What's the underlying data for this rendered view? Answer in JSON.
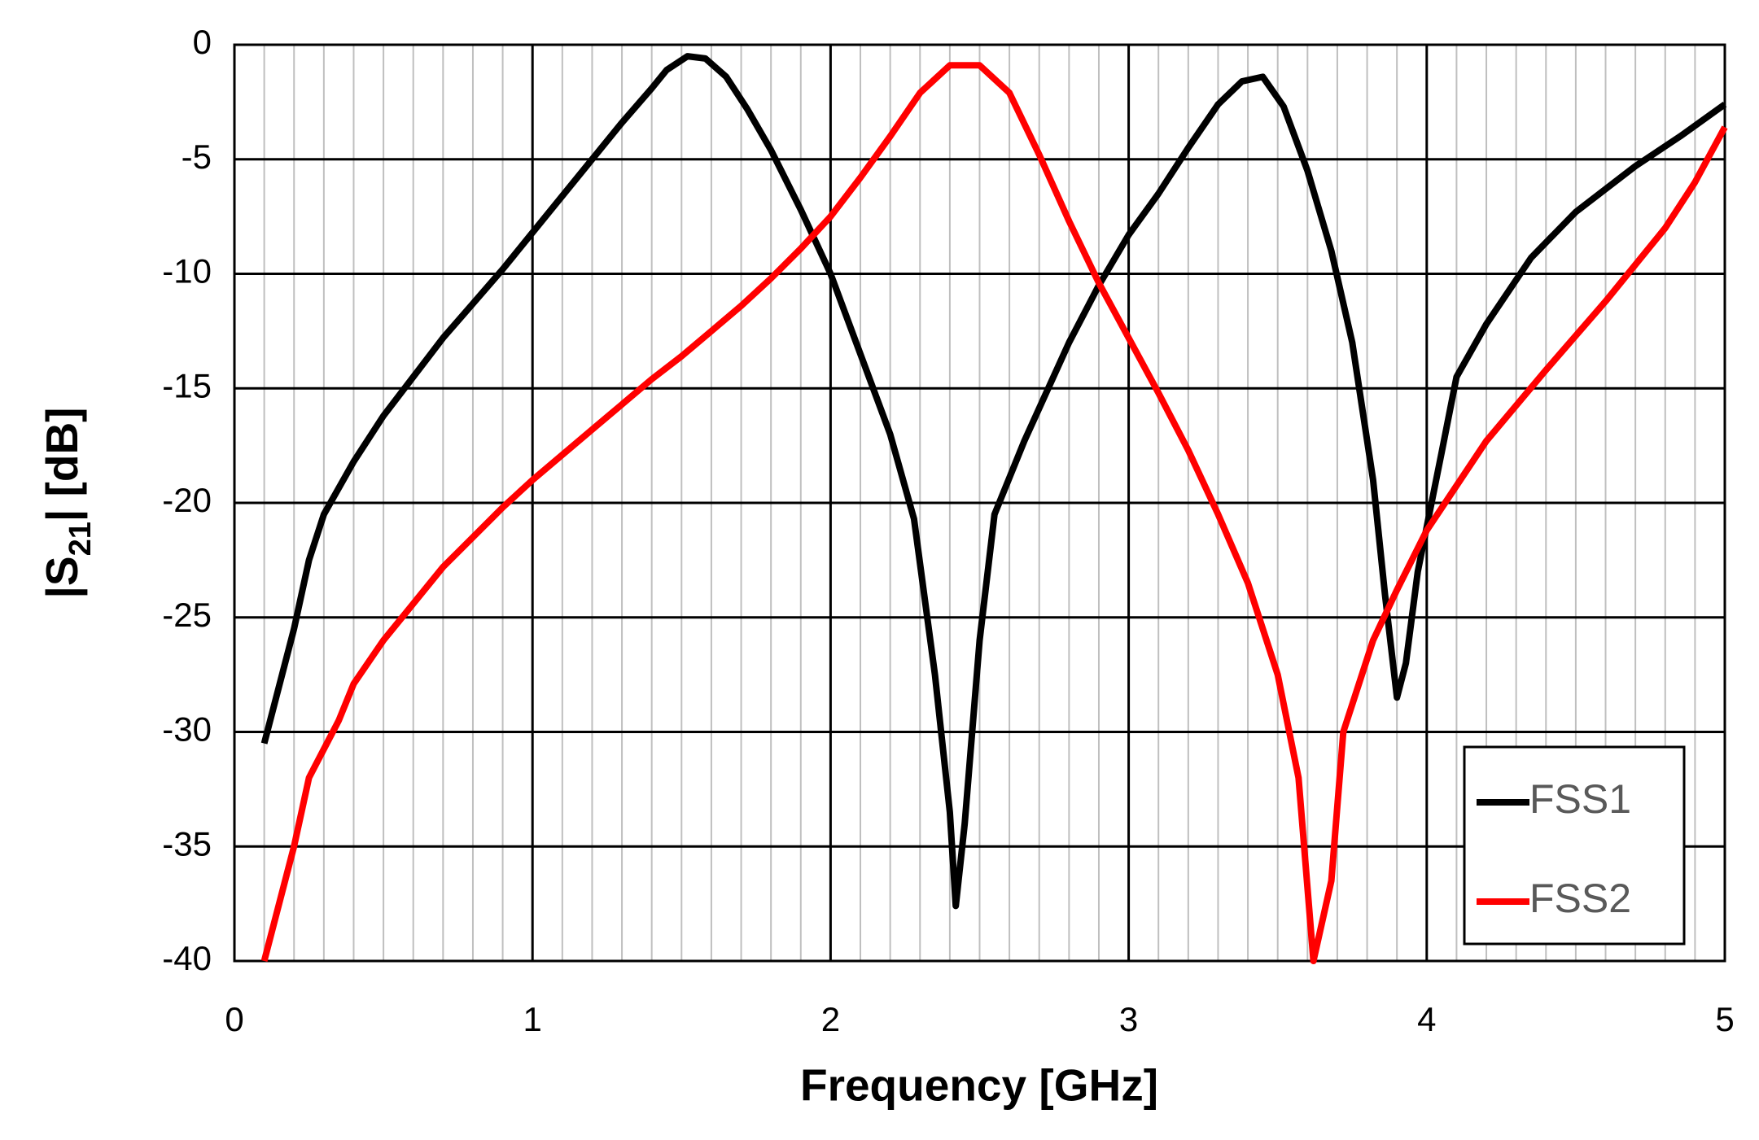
{
  "chart_data": {
    "type": "line",
    "x_label": "Frequency [GHz]",
    "y_label": [
      "|S",
      "21",
      "| [dB]"
    ],
    "xlim": [
      0,
      5
    ],
    "xticks": [
      0,
      1,
      2,
      3,
      4,
      5
    ],
    "ylim": [
      -40,
      0
    ],
    "yticks": [
      0,
      -5,
      -10,
      -15,
      -20,
      -25,
      -30,
      -35,
      -40
    ],
    "grid": true,
    "x_minor_divisions": 10,
    "legend": "lower right",
    "series": [
      {
        "name": "FSS1",
        "color": "#000000",
        "x": [
          0.1,
          0.2,
          0.25,
          0.3,
          0.4,
          0.5,
          0.6,
          0.7,
          0.8,
          0.9,
          1.0,
          1.1,
          1.2,
          1.3,
          1.4,
          1.45,
          1.52,
          1.58,
          1.65,
          1.72,
          1.8,
          1.9,
          2.0,
          2.1,
          2.2,
          2.28,
          2.35,
          2.4,
          2.42,
          2.45,
          2.5,
          2.55,
          2.65,
          2.8,
          2.9,
          3.0,
          3.1,
          3.2,
          3.3,
          3.38,
          3.45,
          3.52,
          3.6,
          3.68,
          3.75,
          3.82,
          3.86,
          3.9,
          3.93,
          3.97,
          4.05,
          4.1,
          4.2,
          4.35,
          4.5,
          4.7,
          4.85,
          5.0
        ],
        "values": [
          -30.5,
          -25.5,
          -22.5,
          -20.5,
          -18.2,
          -16.2,
          -14.5,
          -12.8,
          -11.3,
          -9.8,
          -8.2,
          -6.6,
          -5,
          -3.4,
          -1.9,
          -1.1,
          -0.5,
          -0.6,
          -1.4,
          -2.8,
          -4.6,
          -7.2,
          -10,
          -13.5,
          -17,
          -20.7,
          -27.5,
          -33.5,
          -37.6,
          -34,
          -26,
          -20.5,
          -17.3,
          -13,
          -10.5,
          -8.3,
          -6.5,
          -4.5,
          -2.6,
          -1.6,
          -1.4,
          -2.7,
          -5.5,
          -9,
          -13,
          -19,
          -24,
          -28.5,
          -27,
          -23,
          -17.8,
          -14.5,
          -12.2,
          -9.3,
          -7.3,
          -5.3,
          -4,
          -2.6
        ]
      },
      {
        "name": "FSS2",
        "color": "#ff0000",
        "x": [
          0.1,
          0.2,
          0.25,
          0.35,
          0.4,
          0.5,
          0.6,
          0.7,
          0.8,
          0.9,
          1.0,
          1.1,
          1.2,
          1.3,
          1.4,
          1.5,
          1.6,
          1.7,
          1.8,
          1.9,
          2.0,
          2.1,
          2.2,
          2.3,
          2.4,
          2.5,
          2.6,
          2.7,
          2.8,
          2.9,
          3.0,
          3.1,
          3.2,
          3.3,
          3.4,
          3.5,
          3.57,
          3.62,
          3.68,
          3.72,
          3.82,
          3.9,
          4.0,
          4.2,
          4.4,
          4.6,
          4.8,
          4.9,
          5.0
        ],
        "values": [
          -40,
          -35,
          -32,
          -29.5,
          -27.9,
          -26,
          -24.4,
          -22.8,
          -21.5,
          -20.2,
          -19,
          -17.9,
          -16.8,
          -15.7,
          -14.6,
          -13.6,
          -12.5,
          -11.4,
          -10.2,
          -8.9,
          -7.5,
          -5.8,
          -4,
          -2.1,
          -0.9,
          -0.9,
          -2.1,
          -4.8,
          -7.7,
          -10.4,
          -12.8,
          -15.2,
          -17.7,
          -20.5,
          -23.5,
          -27.5,
          -32,
          -40,
          -36.5,
          -30,
          -26,
          -23.8,
          -21.2,
          -17.3,
          -14.2,
          -11.2,
          -8,
          -6,
          -3.6
        ]
      }
    ]
  }
}
